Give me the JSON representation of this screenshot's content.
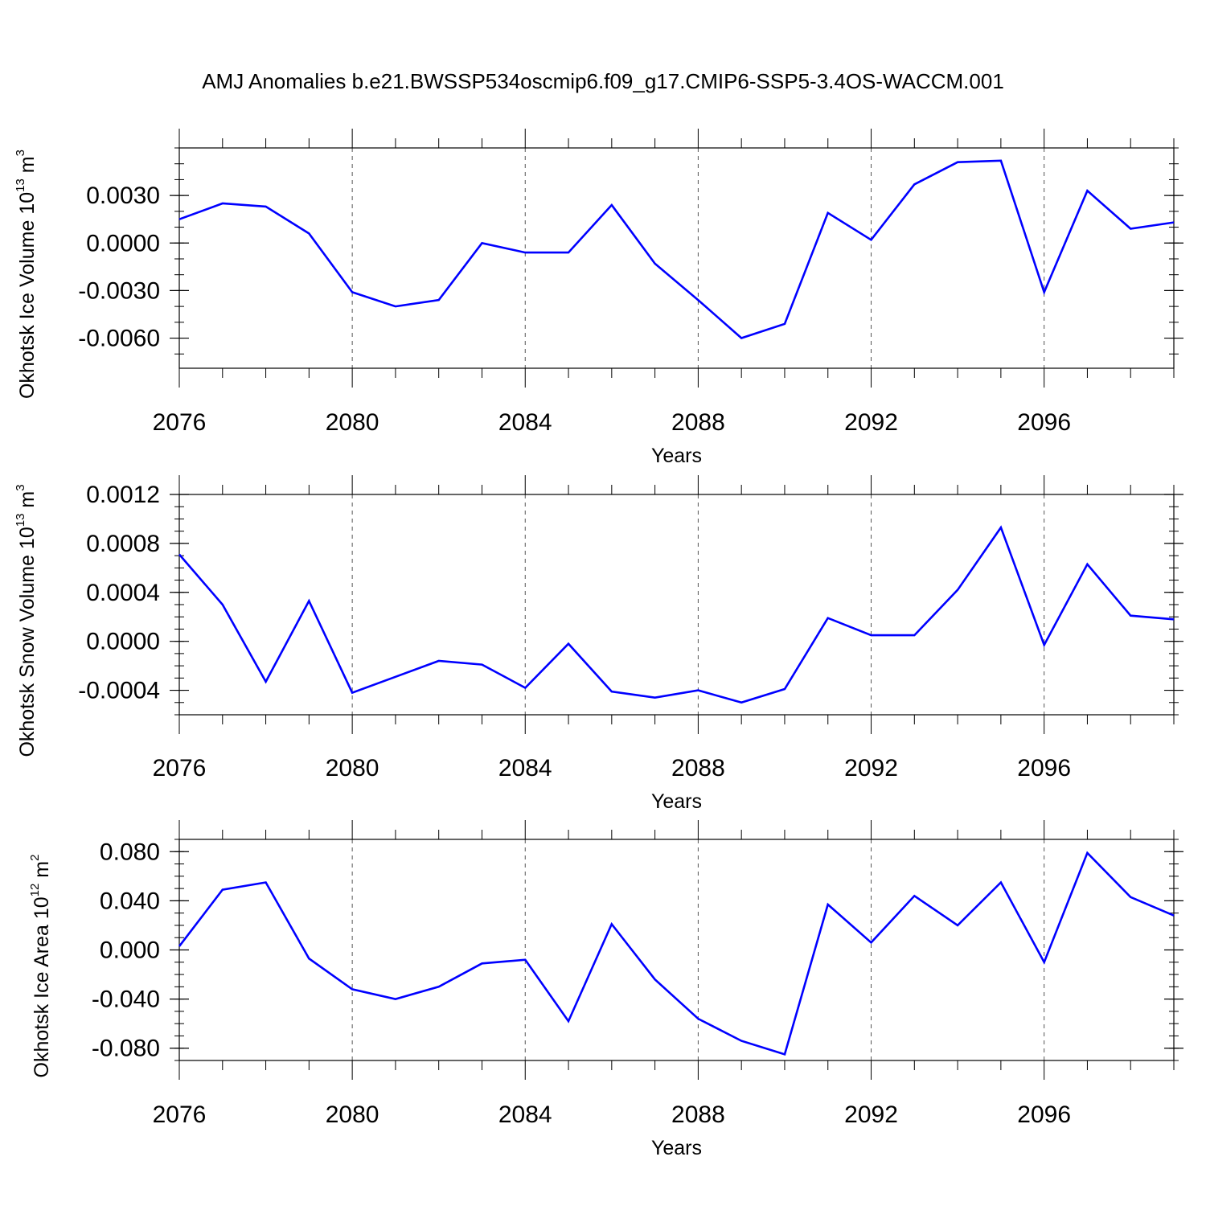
{
  "title": "AMJ Anomalies b.e21.BWSSP534oscmip6.f09_g17.CMIP6-SSP5-3.4OS-WACCM.001",
  "line_color": "#0000ff",
  "chart_data": [
    {
      "type": "line",
      "xlabel": "Years",
      "ylabel": {
        "text": "Okhotsk Ice Volume 10",
        "sup": "13",
        "tail": " m",
        "tail_sup": "3"
      },
      "xlim": [
        2076,
        2099
      ],
      "ylim": [
        -0.0079,
        0.006
      ],
      "x_ticks": [
        2076,
        2080,
        2084,
        2088,
        2092,
        2096
      ],
      "x_tick_labels": [
        "2076",
        "2080",
        "2084",
        "2088",
        "2092",
        "2096"
      ],
      "y_ticks": [
        0.003,
        0.0,
        -0.003,
        -0.006
      ],
      "y_tick_labels": [
        "0.0030",
        "0.0000",
        "-0.0030",
        "-0.0060"
      ],
      "y_minor_step": 0.001,
      "x": [
        2076,
        2077,
        2078,
        2079,
        2080,
        2081,
        2082,
        2083,
        2084,
        2085,
        2086,
        2087,
        2088,
        2089,
        2090,
        2091,
        2092,
        2093,
        2094,
        2095,
        2096,
        2097,
        2098,
        2099
      ],
      "series": [
        {
          "values": [
            0.0015,
            0.0025,
            0.0023,
            0.0006,
            -0.0031,
            -0.004,
            -0.0036,
            0.0,
            -0.0006,
            -0.0006,
            0.0024,
            -0.0013,
            -0.0036,
            -0.006,
            -0.0051,
            0.0019,
            0.0002,
            0.0037,
            0.0051,
            0.0052,
            -0.0031,
            0.0033,
            0.0009,
            0.0013
          ]
        }
      ]
    },
    {
      "type": "line",
      "xlabel": "Years",
      "ylabel": {
        "text": "Okhotsk Snow Volume 10",
        "sup": "13",
        "tail": " m",
        "tail_sup": "3"
      },
      "xlim": [
        2076,
        2099
      ],
      "ylim": [
        -0.0006,
        0.0012
      ],
      "x_ticks": [
        2076,
        2080,
        2084,
        2088,
        2092,
        2096
      ],
      "x_tick_labels": [
        "2076",
        "2080",
        "2084",
        "2088",
        "2092",
        "2096"
      ],
      "y_ticks": [
        0.0012,
        0.0008,
        0.0004,
        0.0,
        -0.0004
      ],
      "y_tick_labels": [
        "0.0012",
        "0.0008",
        "0.0004",
        "0.0000",
        "-0.0004"
      ],
      "y_minor_step": 0.0001,
      "x": [
        2076,
        2077,
        2078,
        2079,
        2080,
        2081,
        2082,
        2083,
        2084,
        2085,
        2086,
        2087,
        2088,
        2089,
        2090,
        2091,
        2092,
        2093,
        2094,
        2095,
        2096,
        2097,
        2098,
        2099
      ],
      "series": [
        {
          "values": [
            0.00071,
            0.0003,
            -0.00033,
            0.00033,
            -0.00042,
            -0.00029,
            -0.00016,
            -0.00019,
            -0.00038,
            -2e-05,
            -0.00041,
            -0.00046,
            -0.0004,
            -0.0005,
            -0.00039,
            0.00019,
            5e-05,
            5e-05,
            0.00042,
            0.00093,
            -3e-05,
            0.00063,
            0.00021,
            0.00018
          ]
        }
      ]
    },
    {
      "type": "line",
      "xlabel": "Years",
      "ylabel": {
        "text": "Okhotsk Ice Area 10",
        "sup": "12",
        "tail": " m",
        "tail_sup": "2"
      },
      "xlim": [
        2076,
        2099
      ],
      "ylim": [
        -0.09,
        0.09
      ],
      "x_ticks": [
        2076,
        2080,
        2084,
        2088,
        2092,
        2096
      ],
      "x_tick_labels": [
        "2076",
        "2080",
        "2084",
        "2088",
        "2092",
        "2096"
      ],
      "y_ticks": [
        0.08,
        0.04,
        0.0,
        -0.04,
        -0.08
      ],
      "y_tick_labels": [
        "0.080",
        "0.040",
        "0.000",
        "-0.040",
        "-0.080"
      ],
      "y_minor_step": 0.01,
      "x": [
        2076,
        2077,
        2078,
        2079,
        2080,
        2081,
        2082,
        2083,
        2084,
        2085,
        2086,
        2087,
        2088,
        2089,
        2090,
        2091,
        2092,
        2093,
        2094,
        2095,
        2096,
        2097,
        2098,
        2099
      ],
      "series": [
        {
          "values": [
            0.003,
            0.049,
            0.055,
            -0.007,
            -0.032,
            -0.04,
            -0.03,
            -0.011,
            -0.008,
            -0.058,
            0.021,
            -0.024,
            -0.056,
            -0.074,
            -0.085,
            0.037,
            0.006,
            0.044,
            0.02,
            0.055,
            -0.01,
            0.079,
            0.043,
            0.028
          ]
        }
      ]
    }
  ]
}
